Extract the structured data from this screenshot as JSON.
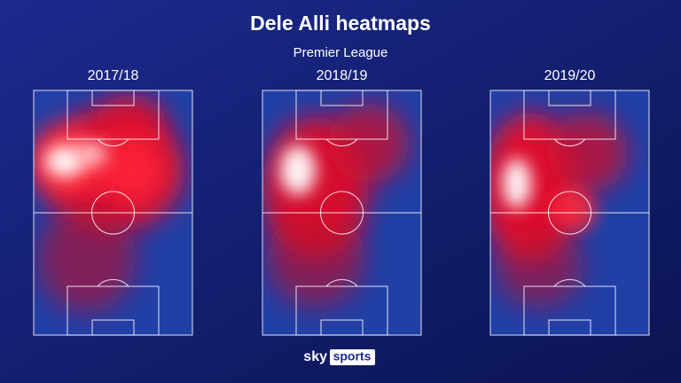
{
  "header": {
    "title": "Dele Alli heatmaps",
    "subtitle": "Premier League"
  },
  "panels": [
    {
      "season": "2017/18"
    },
    {
      "season": "2018/19"
    },
    {
      "season": "2019/20"
    }
  ],
  "logo": {
    "brand": "sky",
    "product": "sports"
  }
}
